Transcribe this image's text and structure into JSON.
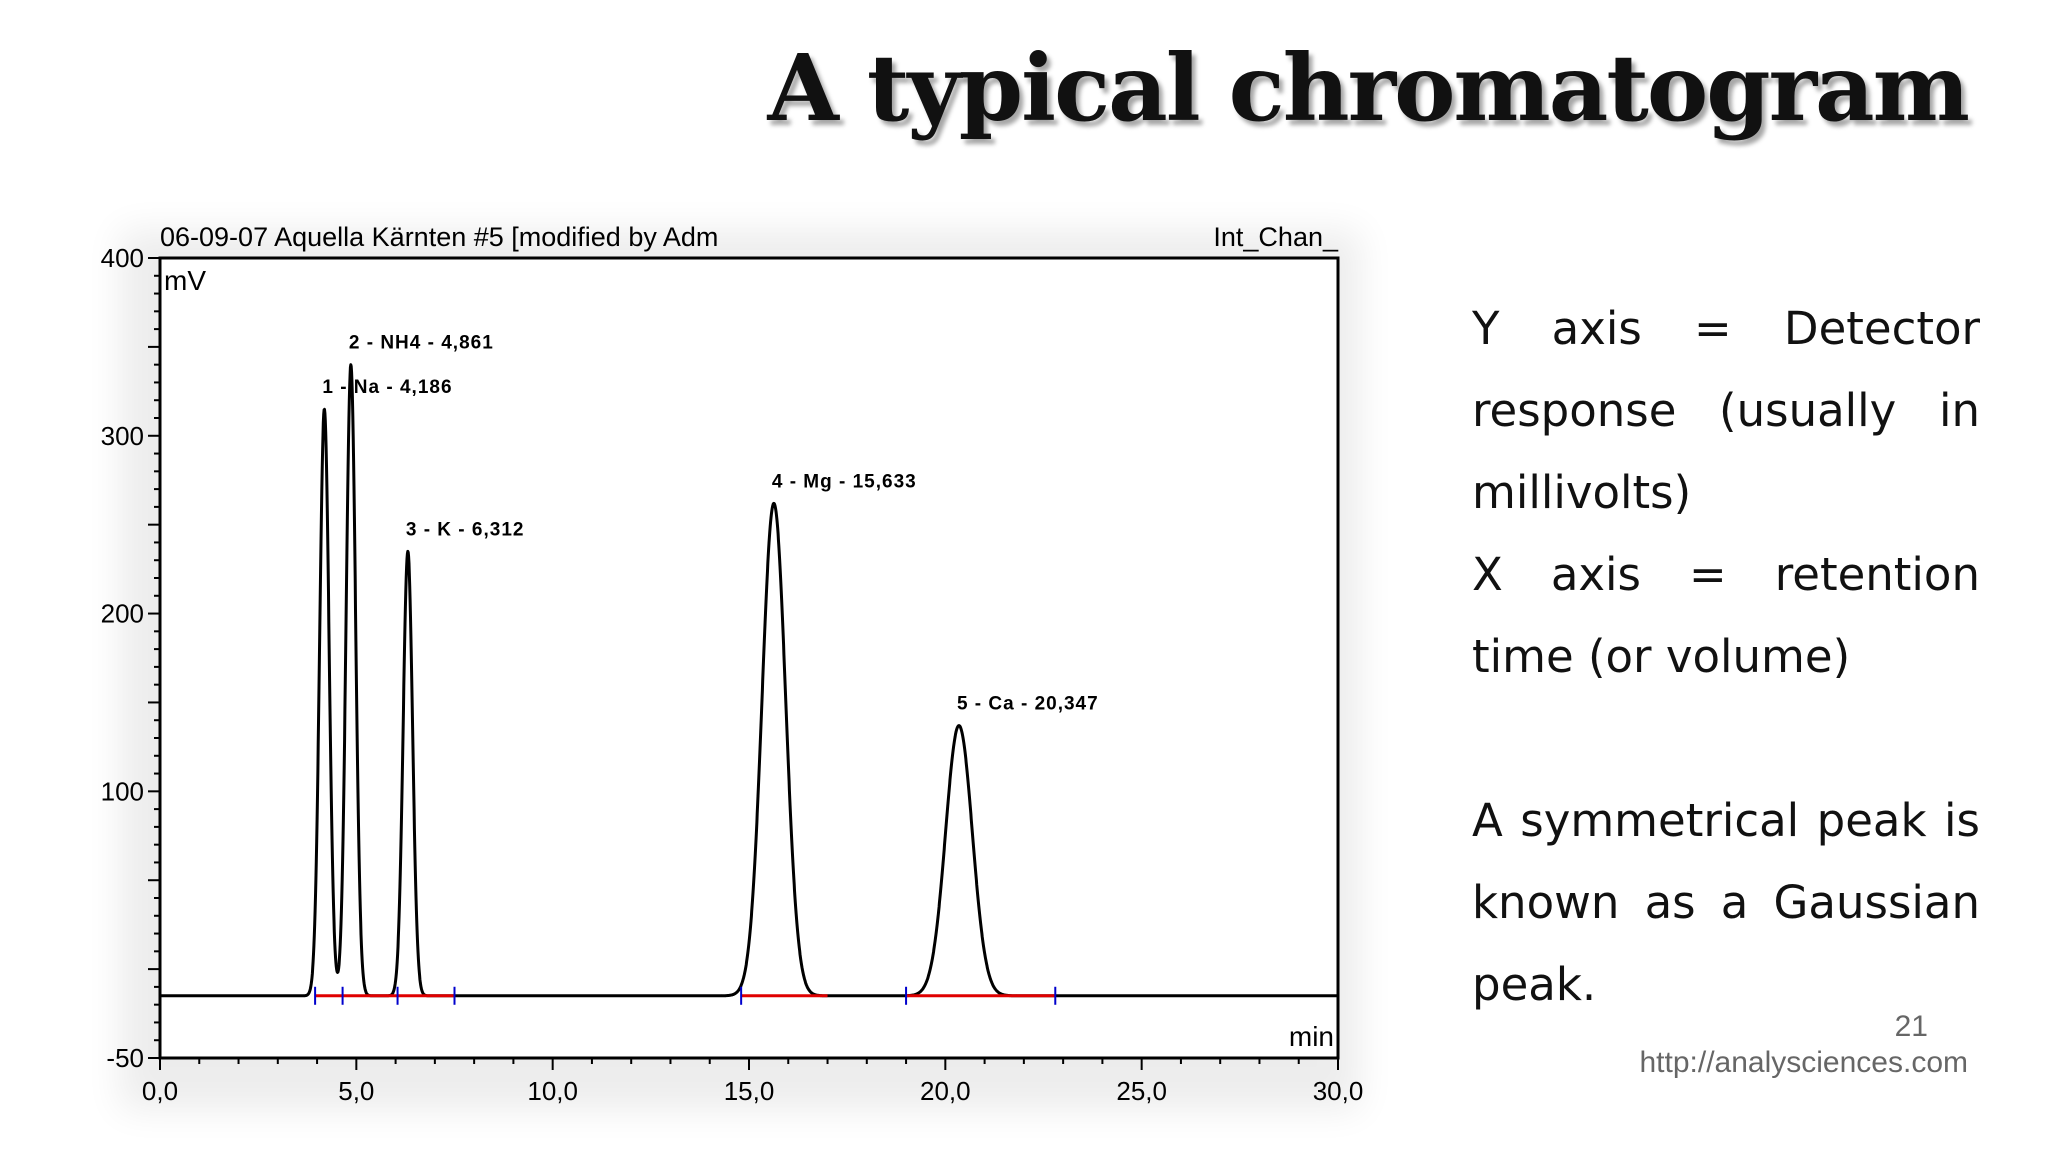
{
  "slide": {
    "title": "A typical chromatogram",
    "notes": [
      "Y axis = Detector response (usually in millivolts)",
      "X axis = retention time (or volume)",
      "A symmetrical peak is known as a Gaussian peak."
    ],
    "page_number": "21",
    "source_url": "http://analysciences.com"
  },
  "chart_data": {
    "type": "line",
    "header_left": "06-09-07 Aquella Kärnten #5 [modified by Adm",
    "header_right": "Int_Chan_",
    "ylabel": "mV",
    "xlabel": "min",
    "xlim": [
      0,
      30
    ],
    "ylim": [
      -50,
      400
    ],
    "x_ticks": [
      "0,0",
      "5,0",
      "10,0",
      "15,0",
      "20,0",
      "25,0",
      "30,0"
    ],
    "y_ticks": [
      "-50",
      "100",
      "200",
      "300",
      "400"
    ],
    "baseline": -15,
    "peaks": [
      {
        "label": "1 - Na - 4,186",
        "x": 4.186,
        "height": 315
      },
      {
        "label": "2 - NH4 - 4,861",
        "x": 4.861,
        "height": 340
      },
      {
        "label": "3 - K - 6,312",
        "x": 6.312,
        "height": 235
      },
      {
        "label": "4 - Mg - 15,633",
        "x": 15.633,
        "height": 262
      },
      {
        "label": "5 - Ca - 20,347",
        "x": 20.347,
        "height": 137
      }
    ],
    "integration_segments": [
      [
        3.95,
        7.5
      ],
      [
        14.8,
        17.0
      ],
      [
        19.0,
        22.8
      ]
    ],
    "integration_markers": [
      3.95,
      4.65,
      6.05,
      7.5,
      14.8,
      19.0,
      22.8
    ],
    "colors": {
      "trace": "#000000",
      "integration_baseline": "#e00000",
      "markers": "#0000cc"
    }
  }
}
